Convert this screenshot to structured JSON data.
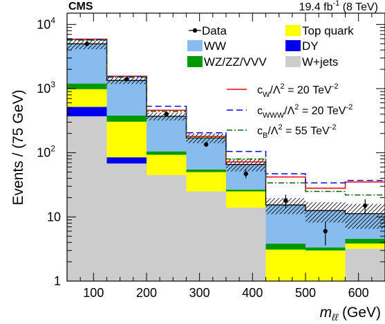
{
  "chart_data": {
    "type": "bar",
    "subtype": "stacked-histogram",
    "experiment_label": "CMS",
    "lumi_label_main": "19.4 fb",
    "lumi_label_exp": "-1",
    "lumi_label_energy": " (8 TeV)",
    "ylabel": "Events / (75 GeV)",
    "xlabel_symbol": "m",
    "xlabel_subscript": "ℓℓ",
    "xlabel_unit": " (GeV)",
    "y_scale": "log",
    "ylim": [
      1,
      15000
    ],
    "xlim": [
      50,
      650
    ],
    "bin_edges": [
      50,
      125,
      200,
      275,
      350,
      425,
      500,
      575,
      650
    ],
    "x_ticks": [
      100,
      200,
      300,
      400,
      500,
      600
    ],
    "x_tick_labels": [
      "100",
      "200",
      "300",
      "400",
      "500",
      "600"
    ],
    "y_ticks": [
      {
        "value": 1,
        "base": "1",
        "exp": ""
      },
      {
        "value": 10,
        "base": "10",
        "exp": ""
      },
      {
        "value": 100,
        "base": "10",
        "exp": "2"
      },
      {
        "value": 1000,
        "base": "10",
        "exp": "3"
      },
      {
        "value": 10000,
        "base": "10",
        "exp": "4"
      }
    ],
    "stack": [
      {
        "name": "W+jets",
        "color": "#cccccc",
        "values": [
          370,
          68,
          45,
          25,
          14,
          1,
          1,
          3.2
        ]
      },
      {
        "name": "DY",
        "color": "#0000ee",
        "values": [
          150,
          17,
          0,
          0,
          0,
          0,
          0,
          0
        ]
      },
      {
        "name": "Top quark",
        "color": "#ffff00",
        "values": [
          460,
          220,
          48,
          25,
          11,
          2.1,
          2.0,
          0.65
        ]
      },
      {
        "name": "WZ/ZZ/VVV",
        "color": "#009900",
        "values": [
          220,
          75,
          12,
          5,
          1.7,
          0.75,
          0.35,
          0.7
        ]
      },
      {
        "name": "WW",
        "color": "#88bbee",
        "values": [
          3800,
          960,
          265,
          115,
          39,
          11.5,
          9.2,
          6.7
        ]
      }
    ],
    "uncertainty": {
      "name": "stat+syst band",
      "relative": [
        0.18,
        0.12,
        0.14,
        0.17,
        0.22,
        0.28,
        0.35,
        0.42
      ]
    },
    "data": {
      "name": "Data",
      "x": [
        87.5,
        162.5,
        237.5,
        312.5,
        387.5,
        462.5,
        537.5,
        612.5
      ],
      "y": [
        5000,
        1400,
        400,
        135,
        47,
        18,
        6,
        15
      ],
      "err_low": [
        70,
        37,
        20,
        11.6,
        6.9,
        4.2,
        2.4,
        3.9
      ],
      "err_high": [
        70,
        37,
        20,
        11.6,
        6.9,
        4.2,
        2.4,
        3.9
      ]
    },
    "signals": [
      {
        "name": "cW",
        "label_base": "c",
        "label_sub": "W",
        "label_rest": "/Λ",
        "label_sup1": "2",
        "label_tail": " = 20 TeV",
        "label_sup2": "-2",
        "color": "#ee0000",
        "dash": "",
        "values": [
          5900,
          1560,
          460,
          180,
          72,
          42,
          28,
          35
        ]
      },
      {
        "name": "cWWW",
        "label_base": "c",
        "label_sub": "WWW",
        "label_rest": "/Λ",
        "label_sup1": "2",
        "label_tail": " = 20 TeV",
        "label_sup2": "-2",
        "color": "#0000ee",
        "dash": "9,5",
        "values": [
          5800,
          1540,
          530,
          205,
          105,
          47,
          34,
          37
        ]
      },
      {
        "name": "cB",
        "label_base": "c",
        "label_sub": "B",
        "label_rest": "/Λ",
        "label_sup1": "2",
        "label_tail": " = 55 TeV",
        "label_sup2": "-2",
        "color": "#006600",
        "dash": "8,3,2,3",
        "values": [
          5700,
          1500,
          440,
          170,
          80,
          34,
          25,
          22
        ]
      }
    ],
    "legend": {
      "placement": "top-right",
      "entries": [
        {
          "label": "Data",
          "kind": "marker"
        },
        {
          "label": "Top quark",
          "kind": "fill",
          "color": "#ffff00"
        },
        {
          "label": "WW",
          "kind": "fill",
          "color": "#88bbee"
        },
        {
          "label": "DY",
          "kind": "fill",
          "color": "#0000ee"
        },
        {
          "label": "WZ/ZZ/VVV",
          "kind": "fill",
          "color": "#009900"
        },
        {
          "label": "W+jets",
          "kind": "fill",
          "color": "#cccccc"
        }
      ]
    }
  }
}
